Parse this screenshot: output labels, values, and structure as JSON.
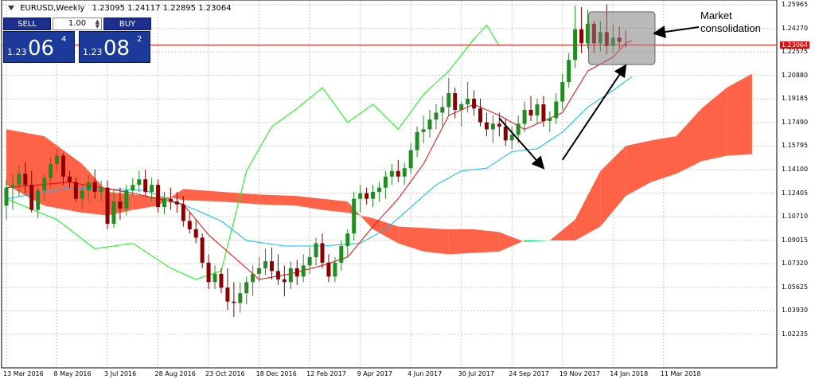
{
  "header": {
    "symbol": "EURUSD,Weekly",
    "ohlc": "1.23095 1.24117 1.22895 1.23064"
  },
  "trade_panel": {
    "sell_label": "SELL",
    "buy_label": "BUY",
    "lot": "1.00",
    "bid_prefix": "1.23",
    "bid_big": "06",
    "bid_sup": "4",
    "ask_prefix": "1.23",
    "ask_big": "08",
    "ask_sup": "2"
  },
  "annotation": {
    "line1": "Market",
    "line2": "consolidation"
  },
  "colors": {
    "bull": "#228b22",
    "bear": "#8b0000",
    "tenkan": "#ff0000",
    "kijun": "#00bfff",
    "chikou": "#00ff00",
    "kumo_up": "#00ee76",
    "kumo_down": "#ff6347",
    "highlight_box": "#808080",
    "current_price_line": "#e01010"
  },
  "chart_data": {
    "type": "candlestick",
    "title": "EURUSD,Weekly",
    "current_price": 1.23064,
    "y_ticks": [
      "1.25965",
      "1.24270",
      "1.22575",
      "1.20880",
      "1.19185",
      "1.17490",
      "1.15795",
      "1.14100",
      "1.12405",
      "1.10710",
      "1.09015",
      "1.07320",
      "1.05625",
      "1.03930",
      "1.02235"
    ],
    "x_ticks": [
      "13 Mar 2016",
      "8 May 2016",
      "3 Jul 2016",
      "28 Aug 2016",
      "23 Oct 2016",
      "18 Dec 2016",
      "12 Feb 2017",
      "9 Apr 2017",
      "4 Jun 2017",
      "30 Jul 2017",
      "24 Sep 2017",
      "19 Nov 2017",
      "14 Jan 2018",
      "11 Mar 2018"
    ],
    "ylim": [
      1.014,
      1.264
    ],
    "grid": true,
    "candles": [
      [
        1.115,
        1.134,
        1.105,
        1.128
      ],
      [
        1.128,
        1.1375,
        1.112,
        1.13
      ],
      [
        1.13,
        1.144,
        1.122,
        1.138
      ],
      [
        1.138,
        1.146,
        1.124,
        1.13
      ],
      [
        1.13,
        1.14,
        1.11,
        1.112
      ],
      [
        1.112,
        1.131,
        1.106,
        1.126
      ],
      [
        1.126,
        1.138,
        1.118,
        1.135
      ],
      [
        1.135,
        1.15,
        1.128,
        1.145
      ],
      [
        1.145,
        1.156,
        1.14,
        1.151
      ],
      [
        1.151,
        1.153,
        1.13,
        1.136
      ],
      [
        1.136,
        1.14,
        1.128,
        1.132
      ],
      [
        1.132,
        1.135,
        1.118,
        1.12
      ],
      [
        1.12,
        1.13,
        1.112,
        1.126
      ],
      [
        1.126,
        1.137,
        1.118,
        1.132
      ],
      [
        1.132,
        1.141,
        1.12,
        1.125
      ],
      [
        1.125,
        1.133,
        1.118,
        1.128
      ],
      [
        1.128,
        1.133,
        1.098,
        1.102
      ],
      [
        1.102,
        1.126,
        1.099,
        1.118
      ],
      [
        1.118,
        1.128,
        1.105,
        1.113
      ],
      [
        1.113,
        1.13,
        1.108,
        1.126
      ],
      [
        1.126,
        1.135,
        1.122,
        1.13
      ],
      [
        1.13,
        1.14,
        1.125,
        1.134
      ],
      [
        1.134,
        1.141,
        1.122,
        1.125
      ],
      [
        1.125,
        1.135,
        1.118,
        1.13
      ],
      [
        1.13,
        1.134,
        1.11,
        1.114
      ],
      [
        1.114,
        1.125,
        1.109,
        1.12
      ],
      [
        1.12,
        1.128,
        1.112,
        1.118
      ],
      [
        1.118,
        1.125,
        1.11,
        1.116
      ],
      [
        1.116,
        1.122,
        1.1,
        1.104
      ],
      [
        1.104,
        1.11,
        1.095,
        1.098
      ],
      [
        1.098,
        1.105,
        1.088,
        1.092
      ],
      [
        1.092,
        1.095,
        1.07,
        1.074
      ],
      [
        1.074,
        1.08,
        1.055,
        1.06
      ],
      [
        1.06,
        1.072,
        1.055,
        1.066
      ],
      [
        1.066,
        1.07,
        1.052,
        1.056
      ],
      [
        1.056,
        1.07,
        1.04,
        1.046
      ],
      [
        1.046,
        1.06,
        1.035,
        1.045
      ],
      [
        1.045,
        1.06,
        1.038,
        1.052
      ],
      [
        1.052,
        1.064,
        1.044,
        1.06
      ],
      [
        1.06,
        1.072,
        1.05,
        1.066
      ],
      [
        1.066,
        1.078,
        1.06,
        1.07
      ],
      [
        1.07,
        1.084,
        1.065,
        1.075
      ],
      [
        1.075,
        1.085,
        1.062,
        1.068
      ],
      [
        1.068,
        1.08,
        1.058,
        1.062
      ],
      [
        1.062,
        1.072,
        1.05,
        1.06
      ],
      [
        1.06,
        1.075,
        1.055,
        1.07
      ],
      [
        1.07,
        1.076,
        1.058,
        1.064
      ],
      [
        1.064,
        1.08,
        1.06,
        1.072
      ],
      [
        1.072,
        1.085,
        1.066,
        1.078
      ],
      [
        1.078,
        1.092,
        1.072,
        1.088
      ],
      [
        1.088,
        1.095,
        1.07,
        1.074
      ],
      [
        1.074,
        1.08,
        1.06,
        1.064
      ],
      [
        1.064,
        1.078,
        1.06,
        1.074
      ],
      [
        1.074,
        1.09,
        1.068,
        1.086
      ],
      [
        1.086,
        1.098,
        1.078,
        1.095
      ],
      [
        1.095,
        1.125,
        1.09,
        1.12
      ],
      [
        1.12,
        1.13,
        1.11,
        1.124
      ],
      [
        1.124,
        1.128,
        1.116,
        1.12
      ],
      [
        1.12,
        1.13,
        1.114,
        1.125
      ],
      [
        1.125,
        1.132,
        1.118,
        1.128
      ],
      [
        1.128,
        1.14,
        1.12,
        1.136
      ],
      [
        1.136,
        1.145,
        1.13,
        1.14
      ],
      [
        1.14,
        1.148,
        1.132,
        1.136
      ],
      [
        1.136,
        1.146,
        1.13,
        1.142
      ],
      [
        1.142,
        1.16,
        1.138,
        1.155
      ],
      [
        1.155,
        1.172,
        1.15,
        1.168
      ],
      [
        1.168,
        1.18,
        1.16,
        1.17
      ],
      [
        1.17,
        1.184,
        1.164,
        1.177
      ],
      [
        1.177,
        1.188,
        1.17,
        1.182
      ],
      [
        1.182,
        1.194,
        1.172,
        1.186
      ],
      [
        1.186,
        1.207,
        1.18,
        1.196
      ],
      [
        1.196,
        1.2,
        1.178,
        1.184
      ],
      [
        1.184,
        1.19,
        1.172,
        1.188
      ],
      [
        1.188,
        1.204,
        1.182,
        1.192
      ],
      [
        1.192,
        1.198,
        1.18,
        1.185
      ],
      [
        1.185,
        1.192,
        1.172,
        1.175
      ],
      [
        1.175,
        1.182,
        1.165,
        1.17
      ],
      [
        1.17,
        1.18,
        1.16,
        1.174
      ],
      [
        1.174,
        1.182,
        1.165,
        1.172
      ],
      [
        1.172,
        1.178,
        1.158,
        1.162
      ],
      [
        1.162,
        1.172,
        1.156,
        1.166
      ],
      [
        1.166,
        1.18,
        1.16,
        1.174
      ],
      [
        1.174,
        1.19,
        1.168,
        1.184
      ],
      [
        1.184,
        1.194,
        1.176,
        1.18
      ],
      [
        1.18,
        1.192,
        1.174,
        1.188
      ],
      [
        1.188,
        1.194,
        1.172,
        1.176
      ],
      [
        1.176,
        1.183,
        1.168,
        1.178
      ],
      [
        1.178,
        1.196,
        1.174,
        1.19
      ],
      [
        1.19,
        1.21,
        1.184,
        1.204
      ],
      [
        1.204,
        1.225,
        1.2,
        1.22
      ],
      [
        1.22,
        1.259,
        1.214,
        1.242
      ],
      [
        1.242,
        1.258,
        1.225,
        1.232
      ],
      [
        1.232,
        1.256,
        1.228,
        1.246
      ],
      [
        1.246,
        1.248,
        1.225,
        1.232
      ],
      [
        1.232,
        1.248,
        1.226,
        1.24
      ],
      [
        1.24,
        1.26,
        1.224,
        1.23
      ],
      [
        1.23,
        1.245,
        1.225,
        1.236
      ],
      [
        1.236,
        1.244,
        1.228,
        1.233
      ],
      [
        1.23095,
        1.24117,
        1.22895,
        1.23064
      ]
    ],
    "tenkan": [
      [
        0,
        1.128
      ],
      [
        10,
        1.132
      ],
      [
        20,
        1.124
      ],
      [
        28,
        1.116
      ],
      [
        32,
        1.094
      ],
      [
        36,
        1.078
      ],
      [
        40,
        1.062
      ],
      [
        45,
        1.066
      ],
      [
        50,
        1.072
      ],
      [
        54,
        1.078
      ],
      [
        58,
        1.1
      ],
      [
        62,
        1.12
      ],
      [
        66,
        1.145
      ],
      [
        70,
        1.18
      ],
      [
        74,
        1.188
      ],
      [
        78,
        1.18
      ],
      [
        82,
        1.17
      ],
      [
        86,
        1.178
      ],
      [
        88,
        1.182
      ],
      [
        92,
        1.212
      ],
      [
        96,
        1.222
      ],
      [
        98,
        1.232
      ],
      [
        99,
        1.234
      ]
    ],
    "kijun": [
      [
        0,
        1.12
      ],
      [
        10,
        1.128
      ],
      [
        22,
        1.126
      ],
      [
        30,
        1.112
      ],
      [
        34,
        1.104
      ],
      [
        38,
        1.09
      ],
      [
        44,
        1.086
      ],
      [
        50,
        1.086
      ],
      [
        56,
        1.088
      ],
      [
        60,
        1.098
      ],
      [
        64,
        1.114
      ],
      [
        68,
        1.13
      ],
      [
        72,
        1.14
      ],
      [
        76,
        1.142
      ],
      [
        80,
        1.154
      ],
      [
        84,
        1.156
      ],
      [
        88,
        1.168
      ],
      [
        92,
        1.186
      ],
      [
        96,
        1.198
      ],
      [
        99,
        1.208
      ]
    ],
    "chikou": [
      [
        0,
        1.12
      ],
      [
        8,
        1.105
      ],
      [
        14,
        1.084
      ],
      [
        20,
        1.088
      ],
      [
        26,
        1.07
      ],
      [
        30,
        1.062
      ],
      [
        34,
        1.068
      ],
      [
        38,
        1.14
      ],
      [
        42,
        1.172
      ],
      [
        46,
        1.185
      ],
      [
        50,
        1.2
      ],
      [
        54,
        1.175
      ],
      [
        58,
        1.188
      ],
      [
        62,
        1.17
      ],
      [
        66,
        1.195
      ],
      [
        70,
        1.212
      ],
      [
        74,
        1.235
      ],
      [
        76,
        1.245
      ],
      [
        78,
        1.23
      ]
    ],
    "kumo": [
      [
        0,
        1.17,
        1.13
      ],
      [
        6,
        1.165,
        1.115
      ],
      [
        12,
        1.145,
        1.11
      ],
      [
        16,
        1.125,
        1.108
      ],
      [
        20,
        1.123,
        1.112
      ],
      [
        24,
        1.121,
        1.115
      ],
      [
        26,
        1.121,
        1.121
      ],
      [
        28,
        1.127,
        1.119
      ],
      [
        34,
        1.125,
        1.118
      ],
      [
        40,
        1.123,
        1.116
      ],
      [
        46,
        1.122,
        1.115
      ],
      [
        50,
        1.12,
        1.112
      ],
      [
        54,
        1.118,
        1.11
      ],
      [
        56,
        1.108,
        1.108
      ],
      [
        58,
        1.106,
        1.098
      ],
      [
        62,
        1.1,
        1.088
      ],
      [
        66,
        1.099,
        1.082
      ],
      [
        70,
        1.098,
        1.08
      ],
      [
        74,
        1.098,
        1.081
      ],
      [
        78,
        1.096,
        1.082
      ],
      [
        82,
        1.089,
        1.09
      ],
      [
        86,
        1.09,
        1.09
      ],
      [
        90,
        1.105,
        1.09
      ],
      [
        94,
        1.14,
        1.1
      ],
      [
        98,
        1.158,
        1.122
      ],
      [
        102,
        1.162,
        1.132
      ],
      [
        106,
        1.165,
        1.138
      ],
      [
        110,
        1.185,
        1.147
      ],
      [
        114,
        1.2,
        1.151
      ],
      [
        118,
        1.21,
        1.152
      ]
    ],
    "highlight": {
      "x_from": 92,
      "x_to": 101,
      "y_from": 1.22,
      "y_to": 1.25
    },
    "arrows": [
      [
        78,
        1.178,
        85,
        1.142
      ],
      [
        88,
        1.148,
        98,
        1.216
      ],
      [
        99,
        1.24,
        104,
        1.244
      ]
    ],
    "annotation": "Market consolidation"
  }
}
